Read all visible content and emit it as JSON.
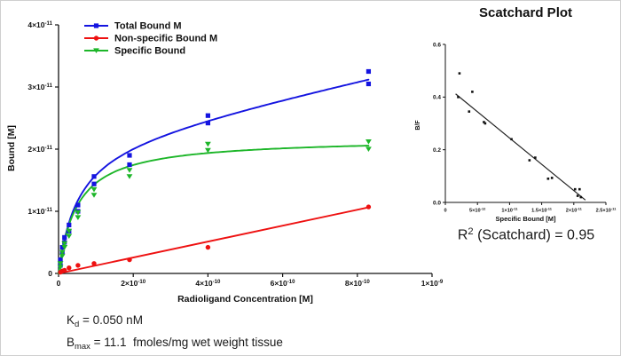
{
  "chart_data": [
    {
      "id": "saturation",
      "type": "scatter",
      "title": "",
      "xlabel": "Radioligand Concentration [M]",
      "ylabel": "Bound [M]",
      "x_unit_scale": "1e-10 M",
      "y_unit_scale": "1e-11 M",
      "xlim": [
        0,
        10
      ],
      "ylim": [
        0,
        4
      ],
      "grid": false,
      "legend_position": "top-left-inside",
      "x_ticks": [
        {
          "v": 0,
          "label": "0"
        },
        {
          "v": 2,
          "label": "2×10^-10"
        },
        {
          "v": 4,
          "label": "4×10^-10"
        },
        {
          "v": 6,
          "label": "6×10^-10"
        },
        {
          "v": 8,
          "label": "8×10^-10"
        },
        {
          "v": 10,
          "label": "1×10^-9"
        }
      ],
      "y_ticks": [
        {
          "v": 0,
          "label": "0"
        },
        {
          "v": 1,
          "label": "1×10^-11"
        },
        {
          "v": 2,
          "label": "2×10^-11"
        },
        {
          "v": 3,
          "label": "3×10^-11"
        },
        {
          "v": 4,
          "label": "4×10^-11"
        }
      ],
      "series": [
        {
          "name": "Total Bound M",
          "color": "#1414e0",
          "marker": "square",
          "points": [
            [
              0.05,
              0.13
            ],
            [
              0.05,
              0.22
            ],
            [
              0.1,
              0.33
            ],
            [
              0.1,
              0.42
            ],
            [
              0.16,
              0.5
            ],
            [
              0.16,
              0.58
            ],
            [
              0.28,
              0.68
            ],
            [
              0.28,
              0.78
            ],
            [
              0.52,
              1.0
            ],
            [
              0.52,
              1.1
            ],
            [
              0.95,
              1.44
            ],
            [
              0.95,
              1.56
            ],
            [
              1.9,
              1.75
            ],
            [
              1.9,
              1.9
            ],
            [
              4.0,
              2.42
            ],
            [
              4.0,
              2.54
            ],
            [
              8.3,
              3.05
            ],
            [
              8.3,
              3.25
            ]
          ],
          "fit": {
            "kind": "saturation+linear",
            "bmax": 2.18,
            "kd": 0.5,
            "ns_slope": 0.128,
            "x_max": 8.3
          }
        },
        {
          "name": "Non-specific Bound M",
          "color": "#ee1111",
          "marker": "circle",
          "points": [
            [
              0.05,
              0.02
            ],
            [
              0.1,
              0.04
            ],
            [
              0.16,
              0.05
            ],
            [
              0.28,
              0.09
            ],
            [
              0.52,
              0.13
            ],
            [
              0.95,
              0.16
            ],
            [
              1.9,
              0.22
            ],
            [
              4.0,
              0.42
            ],
            [
              8.3,
              1.07
            ]
          ],
          "fit": {
            "kind": "linear",
            "slope": 0.128,
            "x_max": 8.3
          }
        },
        {
          "name": "Specific Bound",
          "color": "#1db629",
          "marker": "triangle-down",
          "points": [
            [
              0.05,
              0.1
            ],
            [
              0.05,
              0.16
            ],
            [
              0.1,
              0.28
            ],
            [
              0.1,
              0.34
            ],
            [
              0.16,
              0.42
            ],
            [
              0.16,
              0.48
            ],
            [
              0.28,
              0.6
            ],
            [
              0.28,
              0.68
            ],
            [
              0.52,
              0.9
            ],
            [
              0.52,
              0.98
            ],
            [
              0.95,
              1.26
            ],
            [
              0.95,
              1.35
            ],
            [
              1.9,
              1.56
            ],
            [
              1.9,
              1.66
            ],
            [
              4.0,
              1.98
            ],
            [
              4.0,
              2.08
            ],
            [
              8.3,
              2.0
            ],
            [
              8.3,
              2.12
            ]
          ],
          "fit": {
            "kind": "saturation",
            "bmax": 2.18,
            "kd": 0.5,
            "x_max": 8.3
          }
        }
      ]
    },
    {
      "id": "scatchard",
      "type": "scatter",
      "title": "Scatchard Plot",
      "xlabel": "Specific Bound [M]",
      "ylabel": "B/F",
      "x_unit_scale": "1e-12 M",
      "xlim": [
        0,
        25
      ],
      "ylim": [
        0,
        0.6
      ],
      "grid": false,
      "point_color": "#111111",
      "x_ticks": [
        {
          "v": 0,
          "label": "0"
        },
        {
          "v": 5,
          "label": "5×10^-12"
        },
        {
          "v": 10,
          "label": "1×10^-11"
        },
        {
          "v": 15,
          "label": "1.5×10^-11"
        },
        {
          "v": 20,
          "label": "2×10^-11"
        },
        {
          "v": 25,
          "label": "2.5×10^-11"
        }
      ],
      "y_ticks": [
        {
          "v": 0,
          "label": "0.0"
        },
        {
          "v": 0.2,
          "label": "0.2"
        },
        {
          "v": 0.4,
          "label": "0.4"
        },
        {
          "v": 0.6,
          "label": "0.6"
        }
      ],
      "points": [
        [
          2.0,
          0.4
        ],
        [
          2.2,
          0.49
        ],
        [
          3.7,
          0.345
        ],
        [
          4.2,
          0.42
        ],
        [
          6.0,
          0.305
        ],
        [
          6.2,
          0.3
        ],
        [
          10.3,
          0.24
        ],
        [
          13.1,
          0.16
        ],
        [
          14.0,
          0.17
        ],
        [
          16.0,
          0.09
        ],
        [
          16.6,
          0.093
        ],
        [
          20.2,
          0.05
        ],
        [
          20.9,
          0.05
        ],
        [
          20.6,
          0.025
        ],
        [
          21.1,
          0.02
        ]
      ],
      "trend_line": {
        "x1": 1.6,
        "y1": 0.412,
        "x2": 21.8,
        "y2": 0.009
      }
    }
  ],
  "annotations": {
    "r2": {
      "base": "R",
      "sup": "2",
      "rest": " (Scatchard) = 0.95"
    },
    "kd": {
      "base": "K",
      "sub": "d",
      "rest": " = 0.050 nM"
    },
    "bmax": {
      "base": "B",
      "sub": "max",
      "rest": " = 11.1  fmoles/mg wet weight tissue"
    }
  }
}
